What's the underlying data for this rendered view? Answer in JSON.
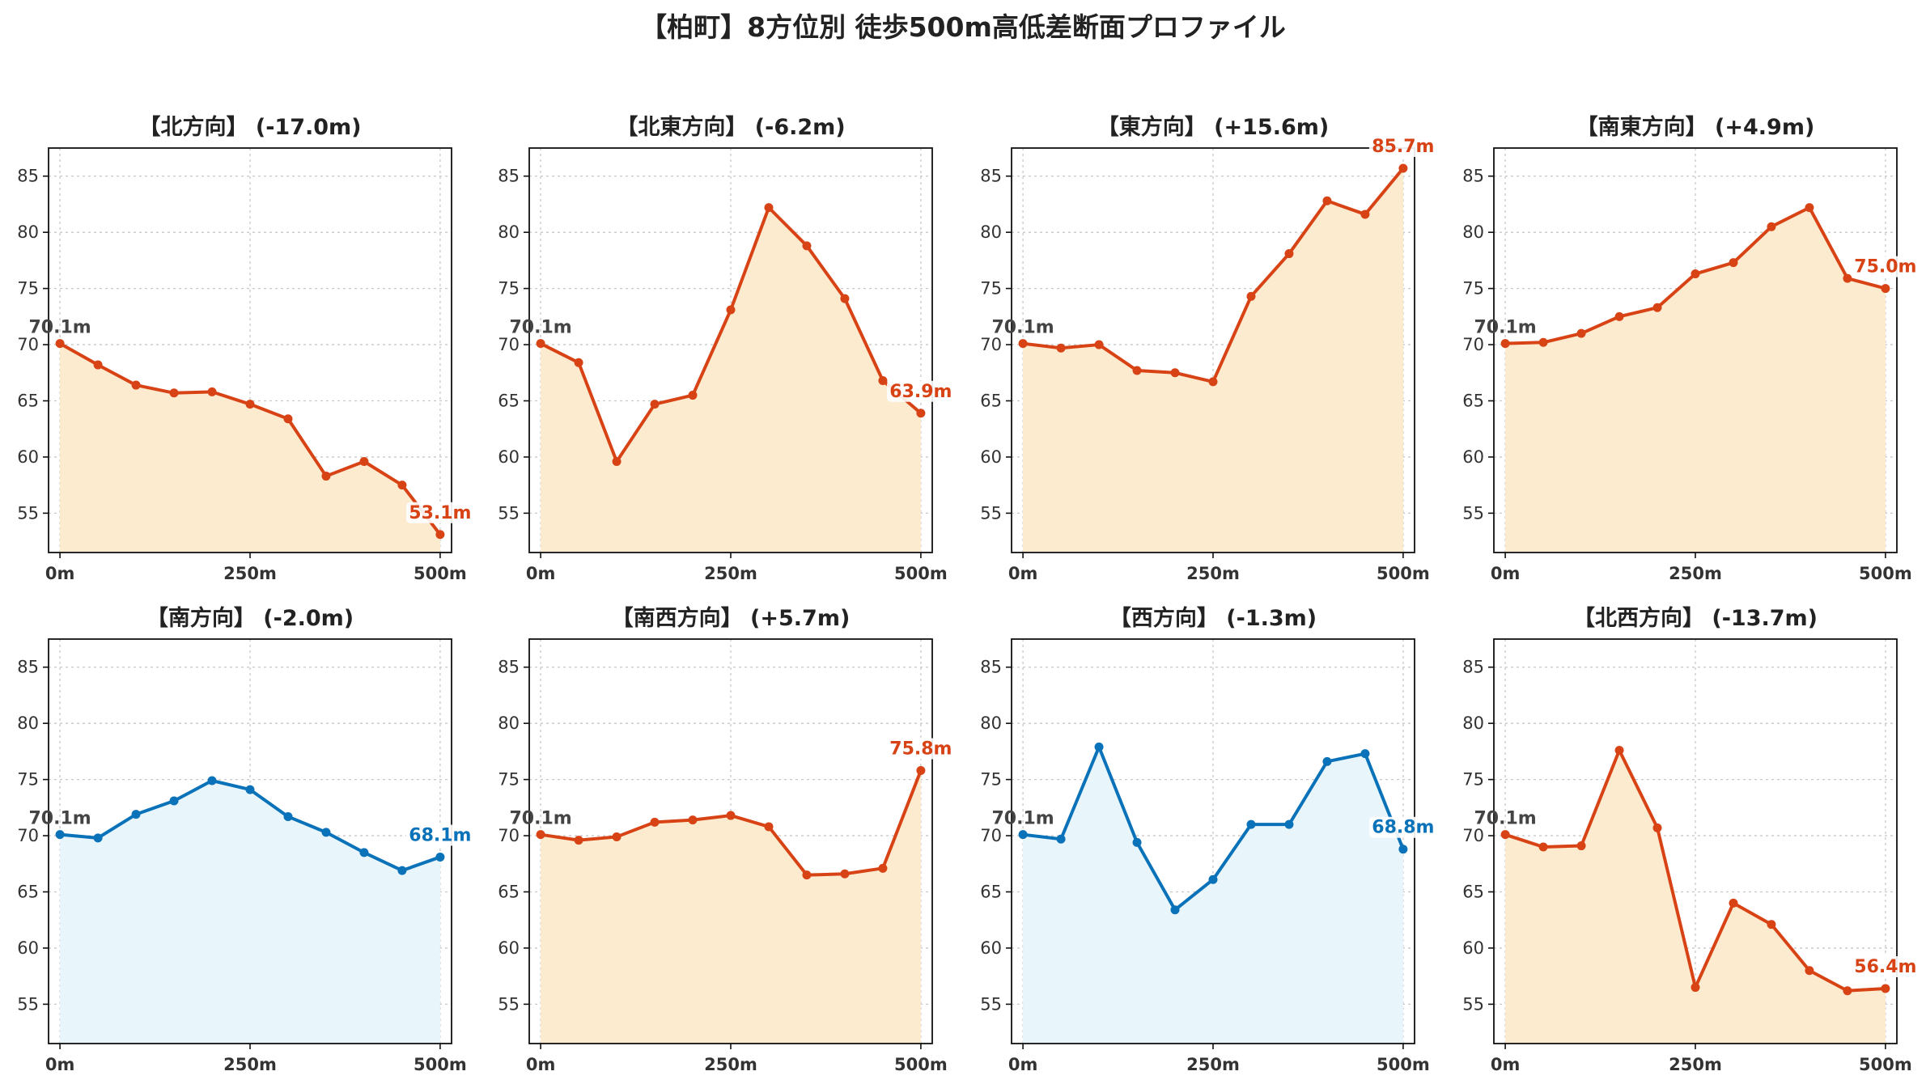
{
  "title": "【柏町】8方位別 徒歩500m高低差断面プロファイル",
  "colors": {
    "up_line": "#d84315",
    "up_fill": "#fdebd0",
    "down_line": "#0a72b8",
    "down_fill": "#e8f5fb",
    "start_label": "#444444"
  },
  "chart_data": [
    {
      "type": "area",
      "title": "【北方向】 (-17.0m)",
      "x": [
        0,
        50,
        100,
        150,
        200,
        250,
        300,
        350,
        400,
        450,
        500
      ],
      "y": [
        70.1,
        68.2,
        66.4,
        65.7,
        65.8,
        64.7,
        63.4,
        58.3,
        59.6,
        57.5,
        53.1
      ],
      "start_label": "70.1m",
      "end_label": "53.1m",
      "color_key": "up",
      "xticks": [
        "0m",
        "250m",
        "500m"
      ],
      "yticks": [
        55,
        60,
        65,
        70,
        75,
        80,
        85
      ],
      "ylim": [
        51.5,
        87.5
      ],
      "grid": true
    },
    {
      "type": "area",
      "title": "【北東方向】 (-6.2m)",
      "x": [
        0,
        50,
        100,
        150,
        200,
        250,
        300,
        350,
        400,
        450,
        500
      ],
      "y": [
        70.1,
        68.4,
        59.6,
        64.7,
        65.5,
        73.1,
        82.2,
        78.8,
        74.1,
        66.8,
        63.9
      ],
      "start_label": "70.1m",
      "end_label": "63.9m",
      "color_key": "up",
      "xticks": [
        "0m",
        "250m",
        "500m"
      ],
      "yticks": [
        55,
        60,
        65,
        70,
        75,
        80,
        85
      ],
      "ylim": [
        51.5,
        87.5
      ],
      "grid": true
    },
    {
      "type": "area",
      "title": "【東方向】 (+15.6m)",
      "x": [
        0,
        50,
        100,
        150,
        200,
        250,
        300,
        350,
        400,
        450,
        500
      ],
      "y": [
        70.1,
        69.7,
        70.0,
        67.7,
        67.5,
        66.7,
        74.3,
        78.1,
        82.8,
        81.6,
        85.7
      ],
      "start_label": "70.1m",
      "end_label": "85.7m",
      "color_key": "up",
      "xticks": [
        "0m",
        "250m",
        "500m"
      ],
      "yticks": [
        55,
        60,
        65,
        70,
        75,
        80,
        85
      ],
      "ylim": [
        51.5,
        87.5
      ],
      "grid": true
    },
    {
      "type": "area",
      "title": "【南東方向】 (+4.9m)",
      "x": [
        0,
        50,
        100,
        150,
        200,
        250,
        300,
        350,
        400,
        450,
        500
      ],
      "y": [
        70.1,
        70.2,
        71.0,
        72.5,
        73.3,
        76.3,
        77.3,
        80.5,
        82.2,
        75.9,
        75.0
      ],
      "start_label": "70.1m",
      "end_label": "75.0m",
      "color_key": "up",
      "xticks": [
        "0m",
        "250m",
        "500m"
      ],
      "yticks": [
        55,
        60,
        65,
        70,
        75,
        80,
        85
      ],
      "ylim": [
        51.5,
        87.5
      ],
      "grid": true
    },
    {
      "type": "area",
      "title": "【南方向】 (-2.0m)",
      "x": [
        0,
        50,
        100,
        150,
        200,
        250,
        300,
        350,
        400,
        450,
        500
      ],
      "y": [
        70.1,
        69.8,
        71.9,
        73.1,
        74.9,
        74.1,
        71.7,
        70.3,
        68.5,
        66.9,
        68.1
      ],
      "start_label": "70.1m",
      "end_label": "68.1m",
      "color_key": "down",
      "xticks": [
        "0m",
        "250m",
        "500m"
      ],
      "yticks": [
        55,
        60,
        65,
        70,
        75,
        80,
        85
      ],
      "ylim": [
        51.5,
        87.5
      ],
      "grid": true
    },
    {
      "type": "area",
      "title": "【南西方向】 (+5.7m)",
      "x": [
        0,
        50,
        100,
        150,
        200,
        250,
        300,
        350,
        400,
        450,
        500
      ],
      "y": [
        70.1,
        69.6,
        69.9,
        71.2,
        71.4,
        71.8,
        70.8,
        66.5,
        66.6,
        67.1,
        75.8
      ],
      "start_label": "70.1m",
      "end_label": "75.8m",
      "color_key": "up",
      "xticks": [
        "0m",
        "250m",
        "500m"
      ],
      "yticks": [
        55,
        60,
        65,
        70,
        75,
        80,
        85
      ],
      "ylim": [
        51.5,
        87.5
      ],
      "grid": true
    },
    {
      "type": "area",
      "title": "【西方向】 (-1.3m)",
      "x": [
        0,
        50,
        100,
        150,
        200,
        250,
        300,
        350,
        400,
        450,
        500
      ],
      "y": [
        70.1,
        69.7,
        77.9,
        69.4,
        63.4,
        66.1,
        71.0,
        71.0,
        76.6,
        77.3,
        68.8
      ],
      "start_label": "70.1m",
      "end_label": "68.8m",
      "color_key": "down",
      "xticks": [
        "0m",
        "250m",
        "500m"
      ],
      "yticks": [
        55,
        60,
        65,
        70,
        75,
        80,
        85
      ],
      "ylim": [
        51.5,
        87.5
      ],
      "grid": true
    },
    {
      "type": "area",
      "title": "【北西方向】 (-13.7m)",
      "x": [
        0,
        50,
        100,
        150,
        200,
        250,
        300,
        350,
        400,
        450,
        500
      ],
      "y": [
        70.1,
        69.0,
        69.1,
        77.6,
        70.7,
        56.5,
        64.0,
        62.1,
        58.0,
        56.2,
        56.4
      ],
      "start_label": "70.1m",
      "end_label": "56.4m",
      "color_key": "up",
      "xticks": [
        "0m",
        "250m",
        "500m"
      ],
      "yticks": [
        55,
        60,
        65,
        70,
        75,
        80,
        85
      ],
      "ylim": [
        51.5,
        87.5
      ],
      "grid": true
    }
  ]
}
